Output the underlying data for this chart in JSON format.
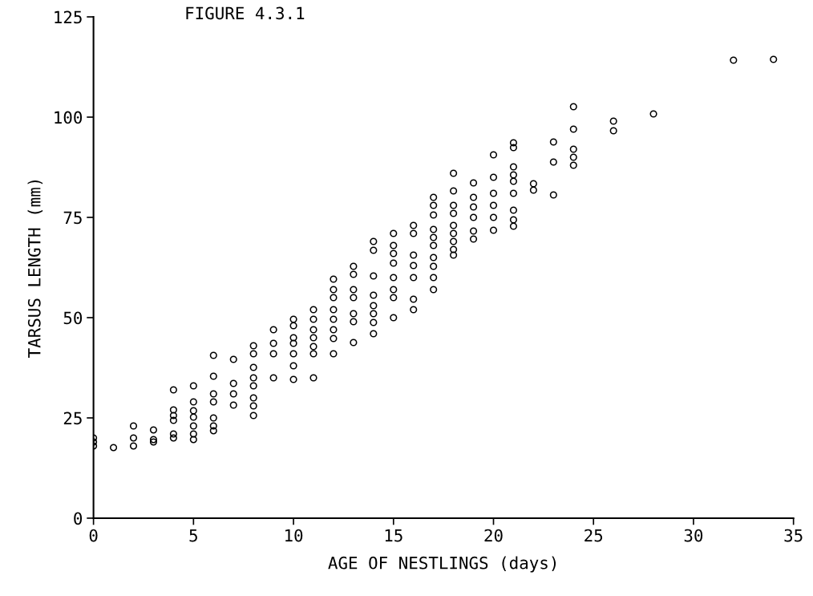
{
  "chart_data": {
    "type": "scatter",
    "title": "FIGURE 4.3.1",
    "xlabel": "AGE OF NESTLINGS (days)",
    "ylabel": "TARSUS LENGTH (mm)",
    "xlim": [
      0,
      35
    ],
    "ylim": [
      0,
      125
    ],
    "xticks": [
      0,
      5,
      10,
      15,
      20,
      25,
      30,
      35
    ],
    "yticks": [
      0,
      25,
      50,
      75,
      100,
      125
    ],
    "marker": "circle",
    "series": [
      {
        "color": "#000000",
        "x": [
          0,
          0,
          0,
          1,
          2,
          2,
          2,
          3,
          3,
          3,
          4,
          4,
          4,
          4,
          4,
          4,
          5,
          5,
          5,
          5,
          5,
          5,
          5,
          6,
          6,
          6,
          6,
          6,
          6,
          6,
          7,
          7,
          7,
          7,
          8,
          8,
          8,
          8,
          8,
          8,
          8,
          8,
          9,
          9,
          9,
          9,
          10,
          10,
          10,
          10,
          10,
          10,
          10,
          11,
          11,
          11,
          11,
          11,
          11,
          11,
          12,
          12,
          12,
          12,
          12,
          12,
          12,
          12,
          13,
          13,
          13,
          13,
          13,
          13,
          13,
          14,
          14,
          14,
          14,
          14,
          14,
          14,
          14,
          15,
          15,
          15,
          15,
          15,
          15,
          15,
          15,
          16,
          16,
          16,
          16,
          16,
          16,
          16,
          17,
          17,
          17,
          17,
          17,
          17,
          17,
          17,
          17,
          17,
          18,
          18,
          18,
          18,
          18,
          18,
          18,
          18,
          18,
          19,
          19,
          19,
          19,
          19,
          19,
          20,
          20,
          20,
          20,
          20,
          20,
          21,
          21,
          21,
          21,
          21,
          21,
          21,
          21,
          21,
          22,
          22,
          23,
          23,
          23,
          24,
          24,
          24,
          24,
          24,
          26,
          26,
          28,
          32,
          34
        ],
        "values": [
          20,
          19,
          18,
          17.6,
          23,
          20,
          18,
          22,
          19.6,
          19,
          32,
          27,
          25.6,
          24.4,
          21,
          20,
          33,
          29,
          26.8,
          25.2,
          23,
          21,
          19.6,
          40.6,
          35.4,
          31,
          29,
          25,
          23,
          21.8,
          39.6,
          33.6,
          31,
          28.2,
          43,
          41,
          37.6,
          35,
          33,
          30,
          28,
          25.6,
          47,
          43.6,
          41,
          35,
          49.6,
          48,
          45,
          43.6,
          41,
          38,
          34.6,
          52,
          49.6,
          47,
          45,
          42.8,
          41,
          35,
          59.6,
          57,
          55,
          52,
          49.6,
          47,
          44.8,
          41,
          62.8,
          60.8,
          57,
          55,
          51,
          49,
          43.8,
          69,
          66.8,
          60.4,
          55.6,
          53,
          51,
          48.8,
          46,
          71,
          68,
          66,
          63.6,
          60,
          57,
          55,
          50,
          73,
          71,
          65.6,
          63,
          60,
          54.6,
          52,
          80,
          78,
          75.6,
          72,
          70,
          68,
          65,
          62.8,
          60,
          57,
          86,
          81.6,
          78,
          76,
          73,
          71,
          69,
          67,
          65.6,
          83.6,
          80,
          77.6,
          75,
          71.6,
          69.6,
          90.6,
          85,
          81,
          78,
          75,
          71.8,
          93.6,
          92.4,
          87.6,
          85.6,
          84,
          81,
          76.8,
          74.4,
          72.8,
          83.4,
          81.8,
          93.8,
          88.8,
          80.6,
          102.6,
          97,
          92,
          90,
          88,
          99,
          96.6,
          100.8,
          114.2,
          114.4
        ]
      }
    ]
  }
}
